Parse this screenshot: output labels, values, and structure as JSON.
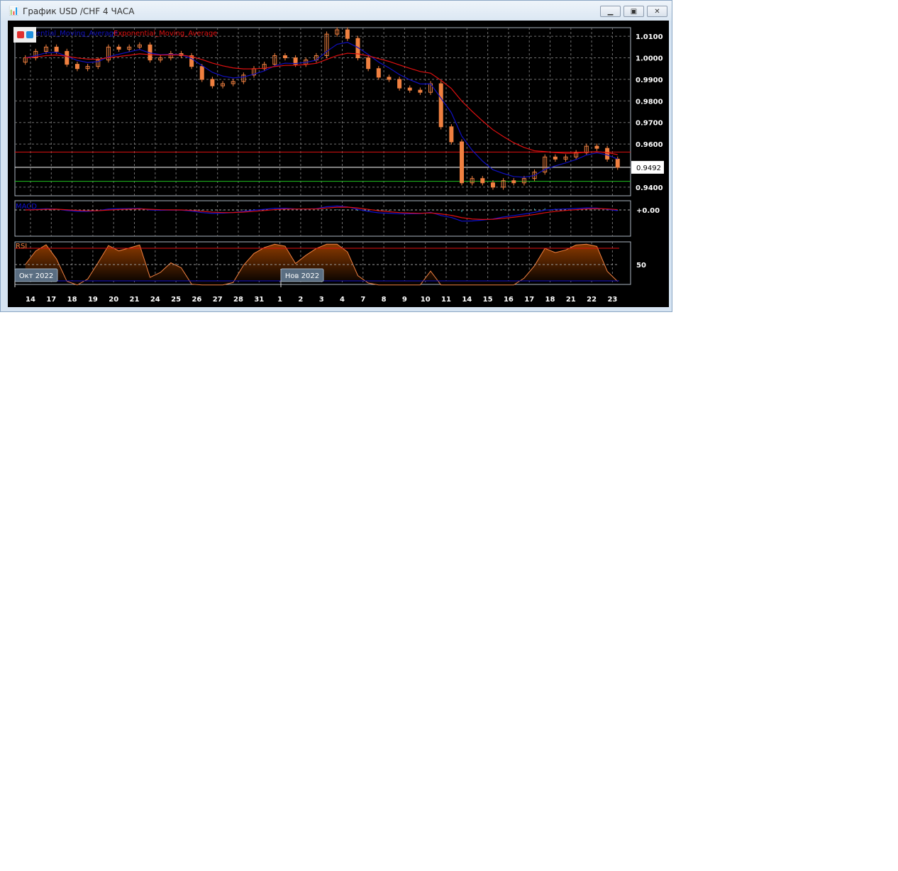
{
  "window": {
    "title": "График USD /CHF  4 ЧАСА",
    "icon": "candlestick-chart-icon",
    "buttons": [
      "minimize",
      "restore",
      "close"
    ]
  },
  "legend": {
    "ema_fast": "ential_Moving_Average",
    "ema_slow": "Exponential_Moving_Average",
    "colors": {
      "fast": "#1010c0",
      "slow": "#e01010"
    }
  },
  "indicators": {
    "macd_label": "MACD",
    "macd_zero_label": "+0.00",
    "rsi_label": "RSI",
    "rsi_mid_label": "50"
  },
  "month_labels": [
    "Окт 2022",
    "Нов 2022"
  ],
  "current_price": "0.9492",
  "chart_data": {
    "type": "candlestick",
    "y_ticks": [
      "1.0100",
      "1.0000",
      "0.9900",
      "0.9800",
      "0.9700",
      "0.9600",
      "0.9400"
    ],
    "ylim": [
      0.936,
      1.014
    ],
    "x_tick_labels": [
      "14",
      "17",
      "18",
      "19",
      "20",
      "21",
      "24",
      "25",
      "26",
      "27",
      "28",
      "31",
      "1",
      "2",
      "3",
      "4",
      "7",
      "8",
      "9",
      "10",
      "11",
      "14",
      "15",
      "16",
      "17",
      "18",
      "21",
      "22",
      "23"
    ],
    "closes": [
      1.0,
      1.003,
      1.005,
      1.003,
      0.997,
      0.995,
      0.996,
      0.999,
      1.005,
      1.004,
      1.005,
      1.006,
      0.999,
      1.0,
      1.002,
      1.001,
      0.996,
      0.99,
      0.987,
      0.988,
      0.989,
      0.992,
      0.995,
      0.997,
      1.001,
      1.0,
      0.997,
      0.999,
      1.001,
      1.011,
      1.013,
      1.009,
      1.0,
      0.995,
      0.991,
      0.99,
      0.986,
      0.985,
      0.984,
      0.988,
      0.968,
      0.961,
      0.942,
      0.944,
      0.942,
      0.94,
      0.943,
      0.942,
      0.944,
      0.947,
      0.954,
      0.953,
      0.954,
      0.956,
      0.959,
      0.958,
      0.953,
      0.9492
    ],
    "horizontal_lines": [
      {
        "value": 0.9563,
        "color": "#e01010"
      },
      {
        "value": 0.9492,
        "color": "#ffffff"
      },
      {
        "value": 0.9427,
        "color": "#20c020"
      }
    ],
    "rsi_levels": [
      70,
      50,
      30
    ],
    "colors": {
      "candle": "#f08040",
      "grid": "#808080",
      "background": "#000000"
    },
    "grid": true
  }
}
